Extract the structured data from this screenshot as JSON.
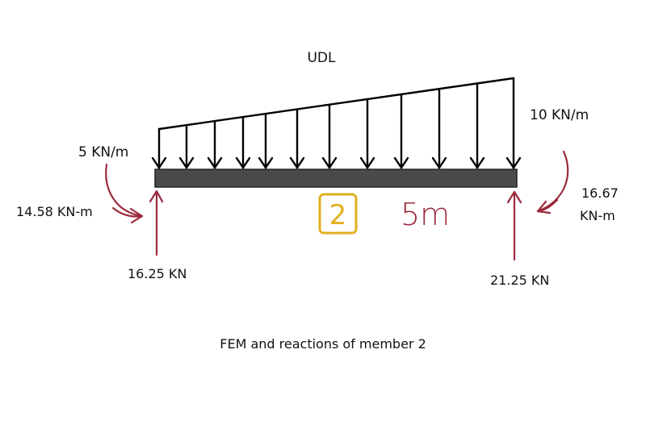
{
  "diagram": {
    "title": "UDL",
    "caption": "FEM and reactions of member 2",
    "load_left": "5 KN/m",
    "load_right": "10 KN/m",
    "moment_left": "14.58 KN-m",
    "moment_right_value": "16.67",
    "moment_right_unit": "KN-m",
    "reaction_left": "16.25 KN",
    "reaction_right": "21.25 KN",
    "member_number": "2",
    "span_length": "5m",
    "colors": {
      "beam": "#4a4a4a",
      "load_arrows": "#000000",
      "reactions": "#9b2a3c",
      "member_tag": "#e0b020",
      "span_text": "#9b2a3c",
      "text": "#111111"
    }
  }
}
